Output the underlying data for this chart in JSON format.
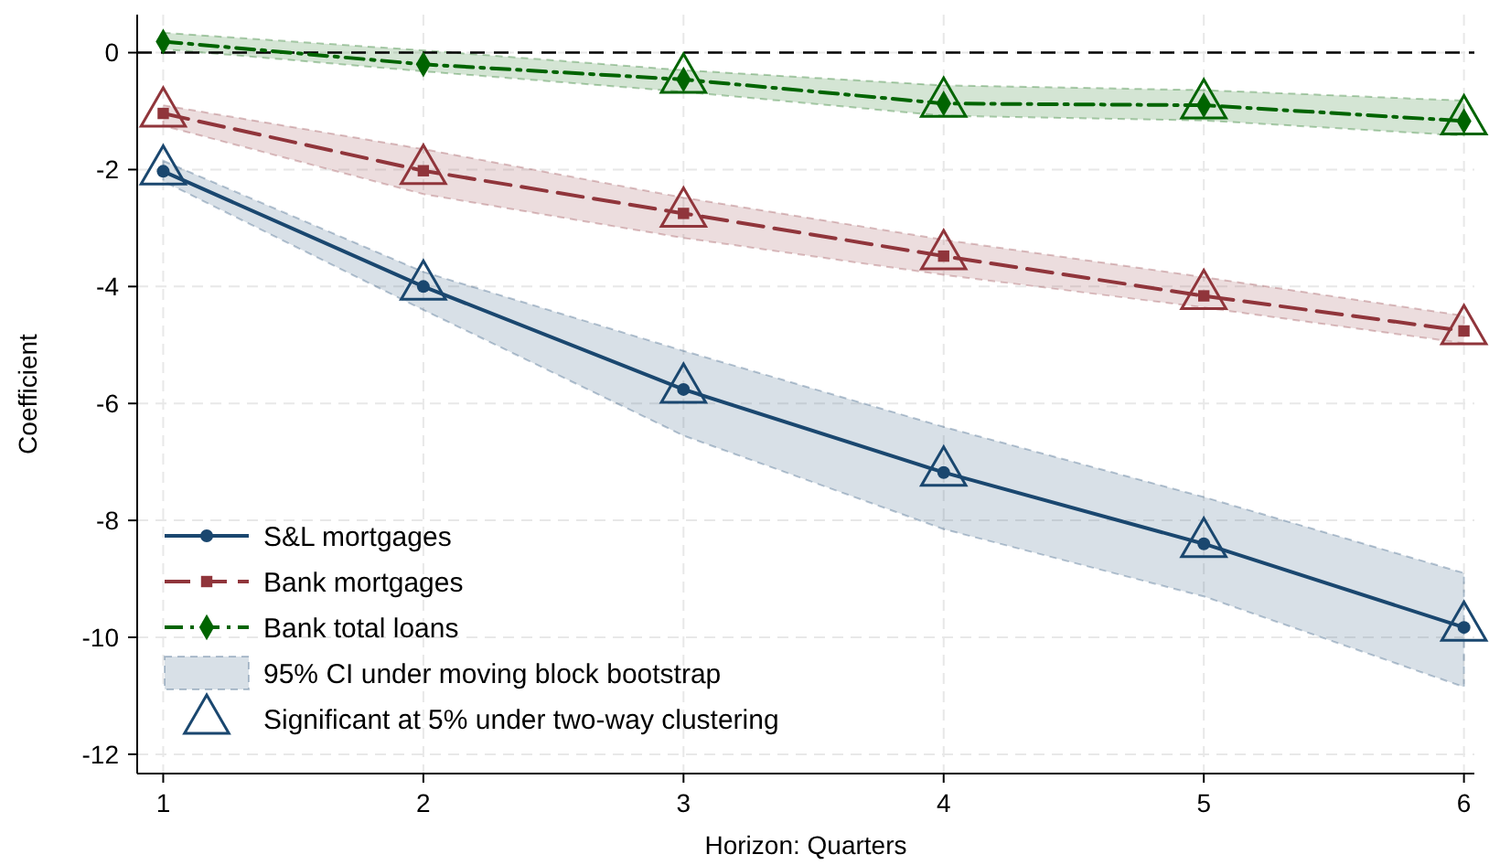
{
  "chart_data": {
    "type": "line",
    "xlabel": "Horizon: Quarters",
    "ylabel": "Coefficient",
    "x": [
      1,
      2,
      3,
      4,
      5,
      6
    ],
    "xlim": [
      0.9,
      6.04
    ],
    "xticks": [
      1,
      2,
      3,
      4,
      5,
      6
    ],
    "ylim": [
      -12.33,
      0.65
    ],
    "yticks": [
      -12,
      -10,
      -8,
      -6,
      -4,
      -2,
      0
    ],
    "grid": true,
    "legend": "bottom left",
    "ref_lines": [
      {
        "axis": "y",
        "value": 0,
        "color": "#000000",
        "line_style": "dashed"
      }
    ],
    "series": [
      {
        "name": "S&L mortgages",
        "color": "#1a476f",
        "marker": "circle",
        "line_style": "solid",
        "values": [
          -2.03,
          -4.0,
          -5.76,
          -7.18,
          -8.4,
          -9.83
        ],
        "lower": [
          -2.2,
          -4.4,
          -6.55,
          -8.15,
          -9.3,
          -10.85
        ],
        "upper": [
          -1.85,
          -3.75,
          -5.1,
          -6.4,
          -7.6,
          -8.9
        ]
      },
      {
        "name": "Bank mortgages",
        "color": "#90353b",
        "marker": "square",
        "line_style": "dashed",
        "values": [
          -1.04,
          -2.02,
          -2.75,
          -3.48,
          -4.16,
          -4.76
        ],
        "lower": [
          -1.25,
          -2.42,
          -3.17,
          -3.8,
          -4.36,
          -4.97
        ],
        "upper": [
          -0.9,
          -1.65,
          -2.48,
          -3.2,
          -3.84,
          -4.5
        ]
      },
      {
        "name": "Bank total loans",
        "color": "#006400",
        "marker": "diamond",
        "line_style": "dotted",
        "values": [
          0.19,
          -0.2,
          -0.46,
          -0.87,
          -0.9,
          -1.17
        ],
        "lower": [
          0.06,
          -0.32,
          -0.67,
          -1.08,
          -1.16,
          -1.42
        ],
        "upper": [
          0.34,
          0.04,
          -0.3,
          -0.56,
          -0.64,
          -0.82
        ]
      },
      {
        "type": "area",
        "name": "95% CI under moving block bootstrap",
        "color": "#1a476f",
        "values": [
          null,
          null,
          null,
          null,
          null,
          null
        ]
      },
      {
        "type": "scatter",
        "name": "Significant at 5% under two-way clustering",
        "color": "#1a476f",
        "marker": "triangle",
        "x": [
          1,
          2,
          3,
          4,
          5,
          6,
          1,
          2,
          3,
          4,
          5,
          6,
          3,
          4,
          5,
          6
        ],
        "values": [
          -2.03,
          -4.0,
          -5.76,
          -7.18,
          -8.4,
          -9.83,
          -1.04,
          -2.02,
          -2.75,
          -3.48,
          -4.16,
          -4.76,
          -0.46,
          -0.87,
          -0.9,
          -1.17
        ],
        "colors": [
          "#1a476f",
          "#1a476f",
          "#1a476f",
          "#1a476f",
          "#1a476f",
          "#1a476f",
          "#90353b",
          "#90353b",
          "#90353b",
          "#90353b",
          "#90353b",
          "#90353b",
          "#006400",
          "#006400",
          "#006400",
          "#006400"
        ]
      }
    ]
  }
}
